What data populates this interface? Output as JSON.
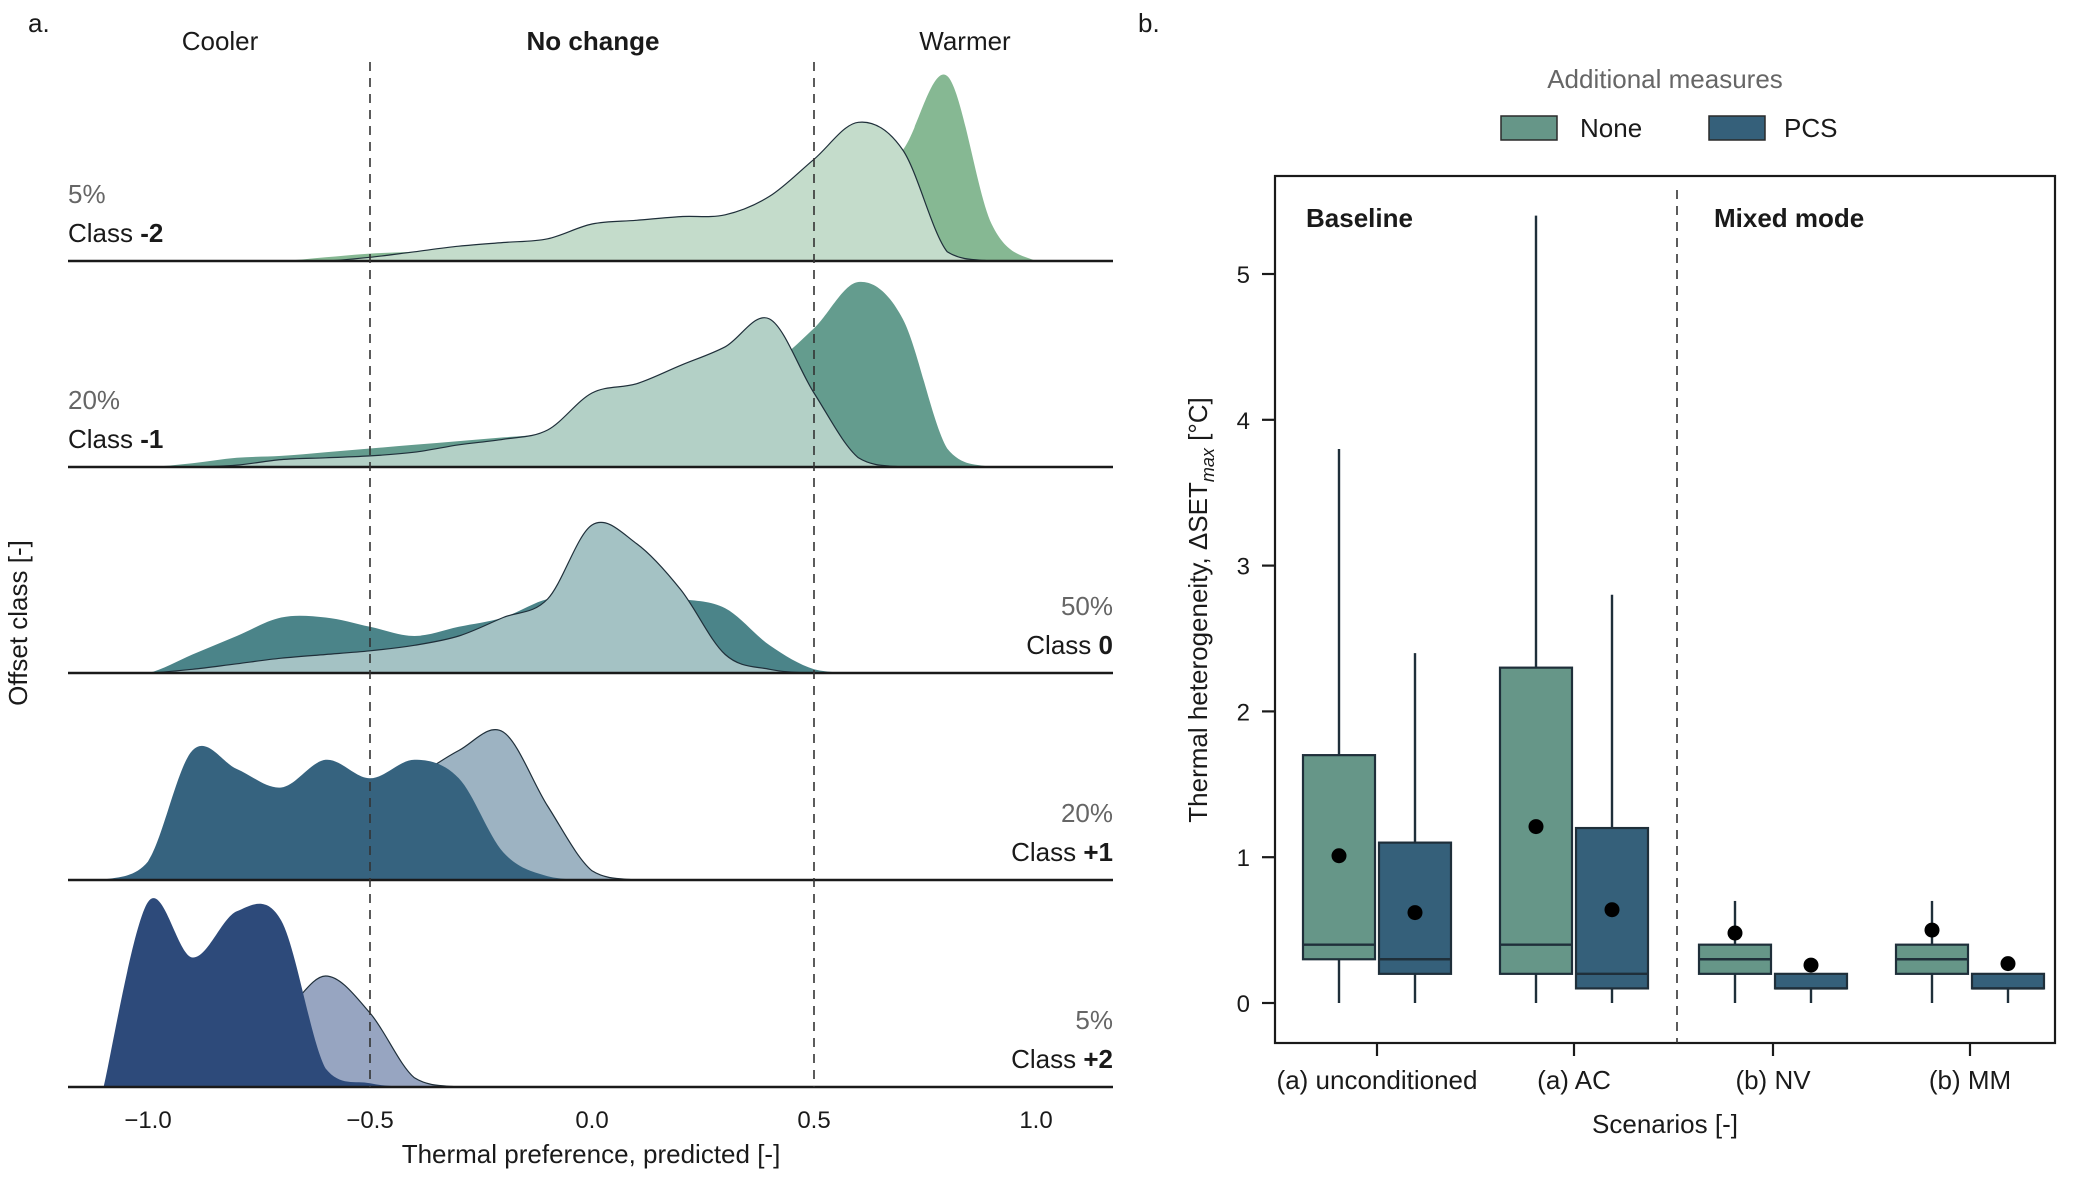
{
  "panel_a": {
    "label": "a.",
    "headers": {
      "cooler": "Cooler",
      "no_change": "No change",
      "warmer": "Warmer"
    },
    "ylabel": "Offset class [-]",
    "xlabel": "Thermal preference, predicted [-]",
    "x_ticks": [
      "−1.0",
      "−0.5",
      "0.0",
      "0.5",
      "1.0"
    ]
  },
  "panel_b": {
    "label": "b.",
    "legend_title": "Additional measures",
    "legend_items": [
      "None",
      "PCS"
    ],
    "groups": [
      "Baseline",
      "Mixed mode"
    ],
    "ylabel": "Thermal heterogeneity, ΔSET",
    "ylabel_sub": "max",
    "ylabel_unit": " [°C]",
    "xlabel": "Scenarios [-]",
    "y_ticks": [
      "0",
      "1",
      "2",
      "3",
      "4",
      "5"
    ]
  },
  "colors": {
    "none_box": "#669688",
    "pcs_box": "#35607a",
    "ridge_fills": [
      "#86b893",
      "#649c8e",
      "#4b8489",
      "#36637f",
      "#2d4a7a"
    ],
    "ridge_pred_fills": [
      "#c4dccb",
      "#b3d0c6",
      "#a4c2c4",
      "#9db3c2",
      "#97a5c1"
    ]
  },
  "chart_data": [
    {
      "type": "area",
      "title": "",
      "xlabel": "Thermal preference, predicted [-]",
      "ylabel": "Offset class [-]",
      "xlim": [
        -1.2,
        1.2
      ],
      "x": [
        -1.0,
        -0.9,
        -0.8,
        -0.7,
        -0.6,
        -0.5,
        -0.4,
        -0.3,
        -0.2,
        -0.1,
        0.0,
        0.1,
        0.2,
        0.3,
        0.4,
        0.5,
        0.6,
        0.7,
        0.8,
        0.9,
        1.0
      ],
      "reference_lines": [
        -0.5,
        0.5
      ],
      "series": [
        {
          "name": "Class -2",
          "share": "5%",
          "primary": [
            0,
            0,
            0,
            0,
            0.02,
            0.04,
            0.05,
            0.06,
            0.08,
            0.08,
            0.1,
            0.1,
            0.1,
            0.11,
            0.13,
            0.2,
            0.4,
            0.6,
            1.0,
            0.2,
            0
          ],
          "predicted": [
            0,
            0,
            0,
            0,
            0,
            0.02,
            0.05,
            0.08,
            0.1,
            0.12,
            0.2,
            0.22,
            0.24,
            0.25,
            0.35,
            0.55,
            0.75,
            0.6,
            0.05,
            0,
            0
          ]
        },
        {
          "name": "Class -1",
          "share": "20%",
          "primary": [
            0,
            0.02,
            0.05,
            0.06,
            0.08,
            0.1,
            0.12,
            0.14,
            0.16,
            0.18,
            0.22,
            0.3,
            0.4,
            0.5,
            0.55,
            0.75,
            1.0,
            0.8,
            0.1,
            0,
            0
          ],
          "predicted": [
            0,
            0,
            0.01,
            0.04,
            0.05,
            0.06,
            0.08,
            0.12,
            0.15,
            0.2,
            0.4,
            0.45,
            0.55,
            0.65,
            0.8,
            0.4,
            0.05,
            0,
            0,
            0,
            0
          ]
        },
        {
          "name": "Class 0",
          "share": "50%",
          "primary": [
            0,
            0.1,
            0.2,
            0.3,
            0.3,
            0.25,
            0.2,
            0.25,
            0.3,
            0.4,
            0.42,
            0.42,
            0.4,
            0.35,
            0.15,
            0.02,
            0,
            0,
            0,
            0,
            0
          ],
          "predicted": [
            0,
            0.02,
            0.05,
            0.08,
            0.1,
            0.12,
            0.15,
            0.2,
            0.3,
            0.4,
            0.8,
            0.7,
            0.45,
            0.1,
            0.02,
            0,
            0,
            0,
            0,
            0,
            0
          ]
        },
        {
          "name": "Class +1",
          "share": "20%",
          "primary": [
            0.1,
            0.7,
            0.6,
            0.5,
            0.65,
            0.55,
            0.65,
            0.55,
            0.15,
            0.02,
            0,
            0,
            0,
            0,
            0,
            0,
            0,
            0,
            0,
            0,
            0
          ],
          "predicted": [
            0,
            0.1,
            0.2,
            0.3,
            0.35,
            0.4,
            0.55,
            0.7,
            0.8,
            0.4,
            0.05,
            0,
            0,
            0,
            0,
            0,
            0,
            0,
            0,
            0,
            0
          ]
        },
        {
          "name": "Class +2",
          "share": "5%",
          "primary": [
            1.0,
            0.7,
            0.95,
            0.9,
            0.1,
            0.02,
            0,
            0,
            0,
            0,
            0,
            0,
            0,
            0,
            0,
            0,
            0,
            0,
            0,
            0,
            0
          ],
          "predicted": [
            0.1,
            0.5,
            0.4,
            0.4,
            0.6,
            0.4,
            0.05,
            0,
            0,
            0,
            0,
            0,
            0,
            0,
            0,
            0,
            0,
            0,
            0,
            0,
            0
          ]
        }
      ]
    },
    {
      "type": "box",
      "title": "",
      "xlabel": "Scenarios [-]",
      "ylabel": "Thermal heterogeneity, ΔSETmax [°C]",
      "ylim": [
        -0.25,
        5.6
      ],
      "categories": [
        "(a) unconditioned",
        "(a) AC",
        "(b) NV",
        "(b) MM"
      ],
      "legend": {
        "title": "Additional measures",
        "position": "top"
      },
      "series": [
        {
          "name": "None",
          "boxes": [
            {
              "whisker_low": 0,
              "q1": 0.3,
              "median": 0.4,
              "q3": 1.7,
              "whisker_high": 3.8,
              "mean": 1.01
            },
            {
              "whisker_low": 0,
              "q1": 0.2,
              "median": 0.4,
              "q3": 2.3,
              "whisker_high": 5.4,
              "mean": 1.21
            },
            {
              "whisker_low": 0,
              "q1": 0.2,
              "median": 0.3,
              "q3": 0.4,
              "whisker_high": 0.7,
              "mean": 0.48
            },
            {
              "whisker_low": 0,
              "q1": 0.2,
              "median": 0.3,
              "q3": 0.4,
              "whisker_high": 0.7,
              "mean": 0.5
            }
          ]
        },
        {
          "name": "PCS",
          "boxes": [
            {
              "whisker_low": 0,
              "q1": 0.2,
              "median": 0.3,
              "q3": 1.1,
              "whisker_high": 2.4,
              "mean": 0.62
            },
            {
              "whisker_low": 0,
              "q1": 0.1,
              "median": 0.2,
              "q3": 1.2,
              "whisker_high": 2.8,
              "mean": 0.64
            },
            {
              "whisker_low": 0,
              "q1": 0.1,
              "median": 0.1,
              "q3": 0.2,
              "whisker_high": 0.2,
              "mean": 0.26
            },
            {
              "whisker_low": 0,
              "q1": 0.1,
              "median": 0.1,
              "q3": 0.2,
              "whisker_high": 0.2,
              "mean": 0.27
            }
          ]
        }
      ]
    }
  ]
}
